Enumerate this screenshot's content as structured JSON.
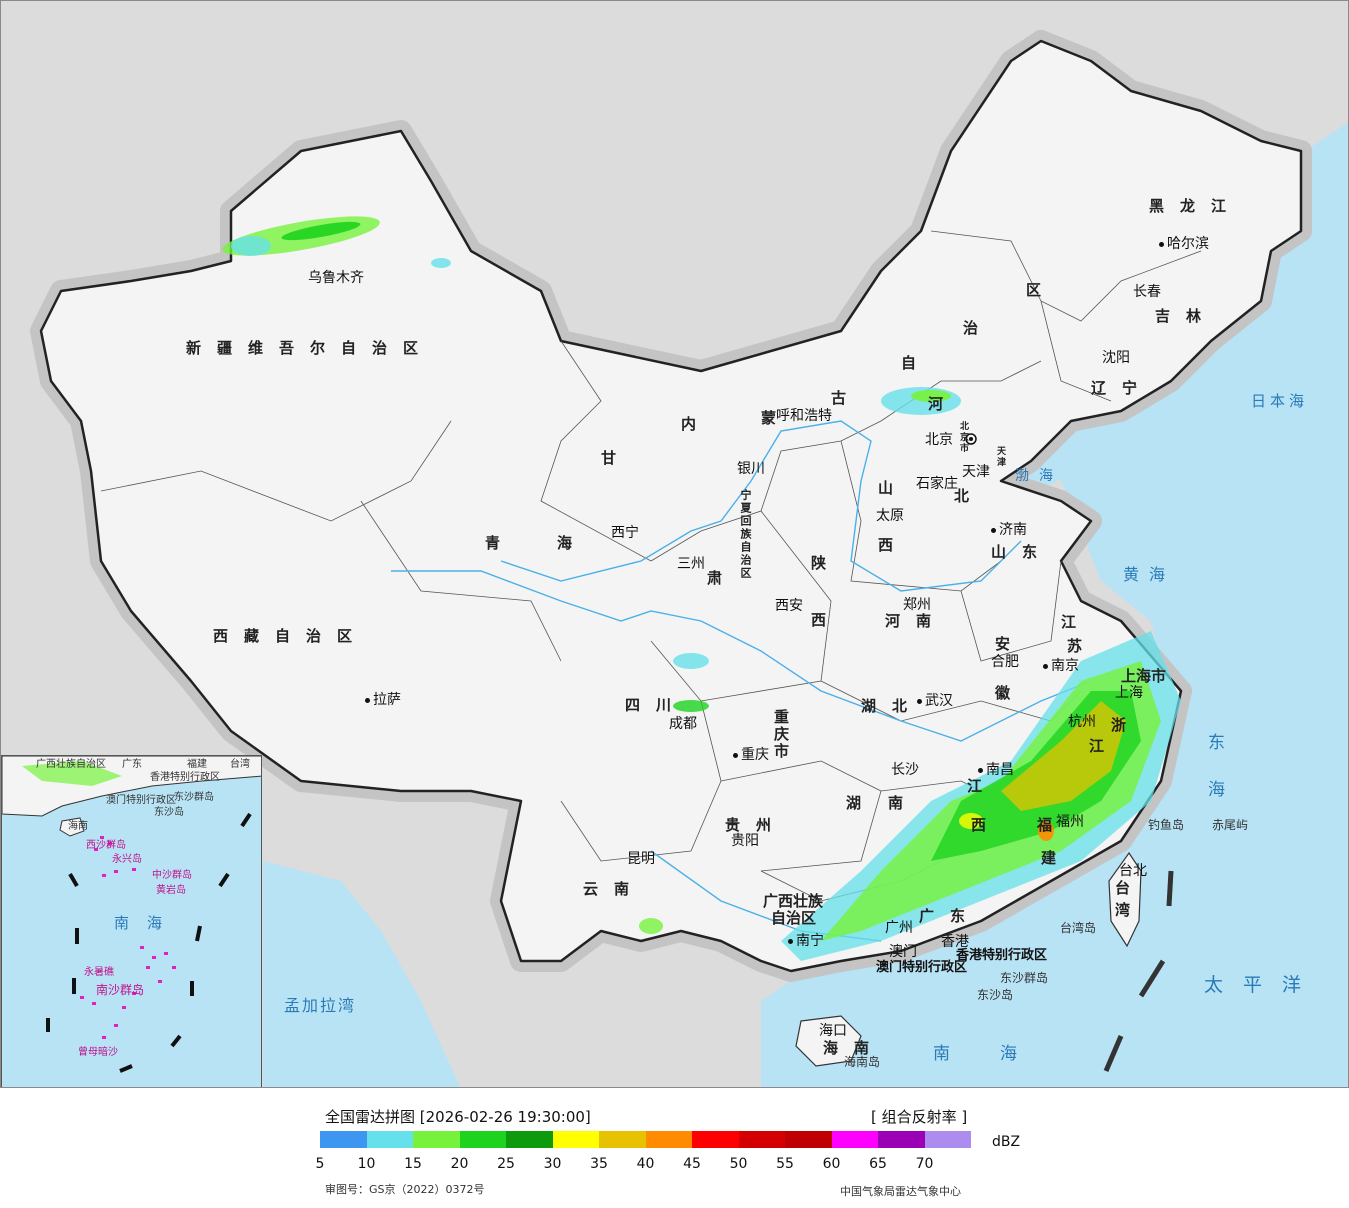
{
  "map": {
    "colors": {
      "sea": "#b8e3f5",
      "land_inside": "#f4f4f4",
      "land_outside": "#dcdcdc",
      "border": "#222222",
      "river": "#4ab0e8"
    },
    "provinces": [
      {
        "id": "xinjiang",
        "label": "新疆维吾尔自治区"
      },
      {
        "id": "xizang",
        "label": "西藏自治区"
      },
      {
        "id": "qinghai1",
        "label": "青"
      },
      {
        "id": "qinghai2",
        "label": "海"
      },
      {
        "id": "gansu1",
        "label": "甘"
      },
      {
        "id": "gansu2",
        "label": "肃"
      },
      {
        "id": "neimenggu1",
        "label": "内"
      },
      {
        "id": "neimenggu2",
        "label": "蒙"
      },
      {
        "id": "neimenggu3",
        "label": "古"
      },
      {
        "id": "neimenggu4",
        "label": "自"
      },
      {
        "id": "neimenggu5",
        "label": "治"
      },
      {
        "id": "neimenggu6",
        "label": "区"
      },
      {
        "id": "heilongjiang",
        "label": "黑龙江"
      },
      {
        "id": "jilin",
        "label": "吉林"
      },
      {
        "id": "liaoning",
        "label": "辽宁"
      },
      {
        "id": "hebei1",
        "label": "河"
      },
      {
        "id": "hebei2",
        "label": "北"
      },
      {
        "id": "shanxi1",
        "label": "山"
      },
      {
        "id": "shanxi2",
        "label": "西"
      },
      {
        "id": "shaanxi1",
        "label": "陕"
      },
      {
        "id": "shaanxi2",
        "label": "西"
      },
      {
        "id": "shandong",
        "label": "山东"
      },
      {
        "id": "henan",
        "label": "河南"
      },
      {
        "id": "jiangsu1",
        "label": "江"
      },
      {
        "id": "jiangsu2",
        "label": "苏"
      },
      {
        "id": "anhui1",
        "label": "安"
      },
      {
        "id": "anhui2",
        "label": "徽"
      },
      {
        "id": "hubei",
        "label": "湖北"
      },
      {
        "id": "sichuan",
        "label": "四川"
      },
      {
        "id": "chongqing",
        "label": "重庆市"
      },
      {
        "id": "hunan1",
        "label": "湖"
      },
      {
        "id": "hunan2",
        "label": "南"
      },
      {
        "id": "jiangxi1",
        "label": "江"
      },
      {
        "id": "jiangxi2",
        "label": "西"
      },
      {
        "id": "zhejiang1",
        "label": "浙"
      },
      {
        "id": "zhejiang2",
        "label": "江"
      },
      {
        "id": "fujian1",
        "label": "福"
      },
      {
        "id": "fujian2",
        "label": "建"
      },
      {
        "id": "guizhou",
        "label": "贵州"
      },
      {
        "id": "yunnan",
        "label": "云南"
      },
      {
        "id": "guangxi1",
        "label": "广西壮族"
      },
      {
        "id": "guangxi2",
        "label": "自治区"
      },
      {
        "id": "guangdong",
        "label": "广东"
      },
      {
        "id": "hainan",
        "label": "海南"
      },
      {
        "id": "taiwan1",
        "label": "台"
      },
      {
        "id": "taiwan2",
        "label": "湾"
      },
      {
        "id": "shanghai",
        "label": "上海市"
      },
      {
        "id": "ningxia",
        "label": "宁夏回族自治区"
      },
      {
        "id": "beijing_vert",
        "label": "北京市"
      },
      {
        "id": "tianjin_vert",
        "label": "天津"
      }
    ],
    "cities": [
      {
        "id": "urumqi",
        "label": "乌鲁木齐"
      },
      {
        "id": "lhasa",
        "label": "拉萨"
      },
      {
        "id": "xining",
        "label": "西宁"
      },
      {
        "id": "lanzhou",
        "label": "三州"
      },
      {
        "id": "yinchuan",
        "label": "银川"
      },
      {
        "id": "huhehaote",
        "label": "呼和浩特"
      },
      {
        "id": "beijing",
        "label": "北京"
      },
      {
        "id": "tianjin",
        "label": "天津"
      },
      {
        "id": "shijiazhuang",
        "label": "石家庄"
      },
      {
        "id": "taiyuan",
        "label": "太原"
      },
      {
        "id": "jinan",
        "label": "济南"
      },
      {
        "id": "zhengzhou",
        "label": "郑州"
      },
      {
        "id": "xian",
        "label": "西安"
      },
      {
        "id": "hefei",
        "label": "合肥"
      },
      {
        "id": "nanjing",
        "label": "南京"
      },
      {
        "id": "shanghai_c",
        "label": "上海"
      },
      {
        "id": "hangzhou",
        "label": "杭州"
      },
      {
        "id": "wuhan",
        "label": "武汉"
      },
      {
        "id": "chengdu",
        "label": "成都"
      },
      {
        "id": "chongqing_c",
        "label": "重庆"
      },
      {
        "id": "changsha",
        "label": "长沙"
      },
      {
        "id": "nanchang",
        "label": "南昌"
      },
      {
        "id": "fuzhou",
        "label": "福州"
      },
      {
        "id": "guiyang",
        "label": "贵阳"
      },
      {
        "id": "kunming",
        "label": "昆明"
      },
      {
        "id": "nanning",
        "label": "南宁"
      },
      {
        "id": "guangzhou",
        "label": "广州"
      },
      {
        "id": "haikou",
        "label": "海口"
      },
      {
        "id": "taibei",
        "label": "台北"
      },
      {
        "id": "shenyang",
        "label": "沈阳"
      },
      {
        "id": "changchun",
        "label": "长春"
      },
      {
        "id": "haerbin",
        "label": "哈尔滨"
      },
      {
        "id": "hongkong",
        "label": "香港"
      },
      {
        "id": "macau",
        "label": "澳门"
      }
    ],
    "special": [
      {
        "id": "hk_sar",
        "label": "香港特别行政区"
      },
      {
        "id": "mo_sar",
        "label": "澳门特别行政区"
      }
    ],
    "seas": [
      {
        "id": "japan_sea",
        "label": "日本海"
      },
      {
        "id": "bohai",
        "label": "渤海"
      },
      {
        "id": "yellow_sea",
        "label": "黄海"
      },
      {
        "id": "east_sea",
        "label": "东海"
      },
      {
        "id": "south_sea",
        "label": "南海"
      },
      {
        "id": "pacific",
        "label": "太平洋"
      },
      {
        "id": "bengal",
        "label": "孟加拉湾"
      }
    ],
    "islands": [
      {
        "id": "diaoyu",
        "label": "钓鱼岛"
      },
      {
        "id": "chiwei",
        "label": "赤尾屿"
      },
      {
        "id": "taiwan_island",
        "label": "台湾岛"
      },
      {
        "id": "dongsha_qundao",
        "label": "东沙群岛"
      },
      {
        "id": "dongsha_dao",
        "label": "东沙岛"
      },
      {
        "id": "hainan_island",
        "label": "海南岛"
      }
    ],
    "inset": {
      "labels": [
        {
          "id": "i_guangxi",
          "label": "广西壮族自治区"
        },
        {
          "id": "i_guangdong",
          "label": "广东"
        },
        {
          "id": "i_fujian",
          "label": "福建"
        },
        {
          "id": "i_taiwan",
          "label": "台湾"
        },
        {
          "id": "i_hk",
          "label": "香港特别行政区"
        },
        {
          "id": "i_mo",
          "label": "澳门特别行政区"
        },
        {
          "id": "i_dongsha",
          "label": "东沙群岛"
        },
        {
          "id": "i_dongsha2",
          "label": "东沙岛"
        },
        {
          "id": "i_hainan",
          "label": "海南"
        },
        {
          "id": "i_xisha",
          "label": "西沙群岛"
        },
        {
          "id": "i_yongxing",
          "label": "永兴岛"
        },
        {
          "id": "i_zhongsha",
          "label": "中沙群岛"
        },
        {
          "id": "i_huangyan",
          "label": "黄岩岛"
        },
        {
          "id": "i_nanhai",
          "label": "南海"
        },
        {
          "id": "i_yongshu",
          "label": "永暑礁"
        },
        {
          "id": "i_nansha",
          "label": "南沙群岛"
        },
        {
          "id": "i_zengmu",
          "label": "曾母暗沙"
        }
      ]
    }
  },
  "legend": {
    "title": "全国雷达拼图 [2026-02-26 19:30:00]",
    "product": "[ 组合反射率 ]",
    "unit": "dBZ",
    "colors": [
      "#3d96f0",
      "#66e0ea",
      "#77f23c",
      "#1ed31e",
      "#0d9a0d",
      "#ffff00",
      "#e6c200",
      "#ff8c00",
      "#ff0000",
      "#d40000",
      "#c00000",
      "#ff00ff",
      "#9a00b4",
      "#ad8cf0"
    ],
    "ticks": [
      "5",
      "10",
      "15",
      "20",
      "25",
      "30",
      "35",
      "40",
      "45",
      "50",
      "55",
      "60",
      "65",
      "70"
    ],
    "approval": "审图号：GS京（2022）0372号",
    "source": "中国气象局雷达气象中心"
  }
}
